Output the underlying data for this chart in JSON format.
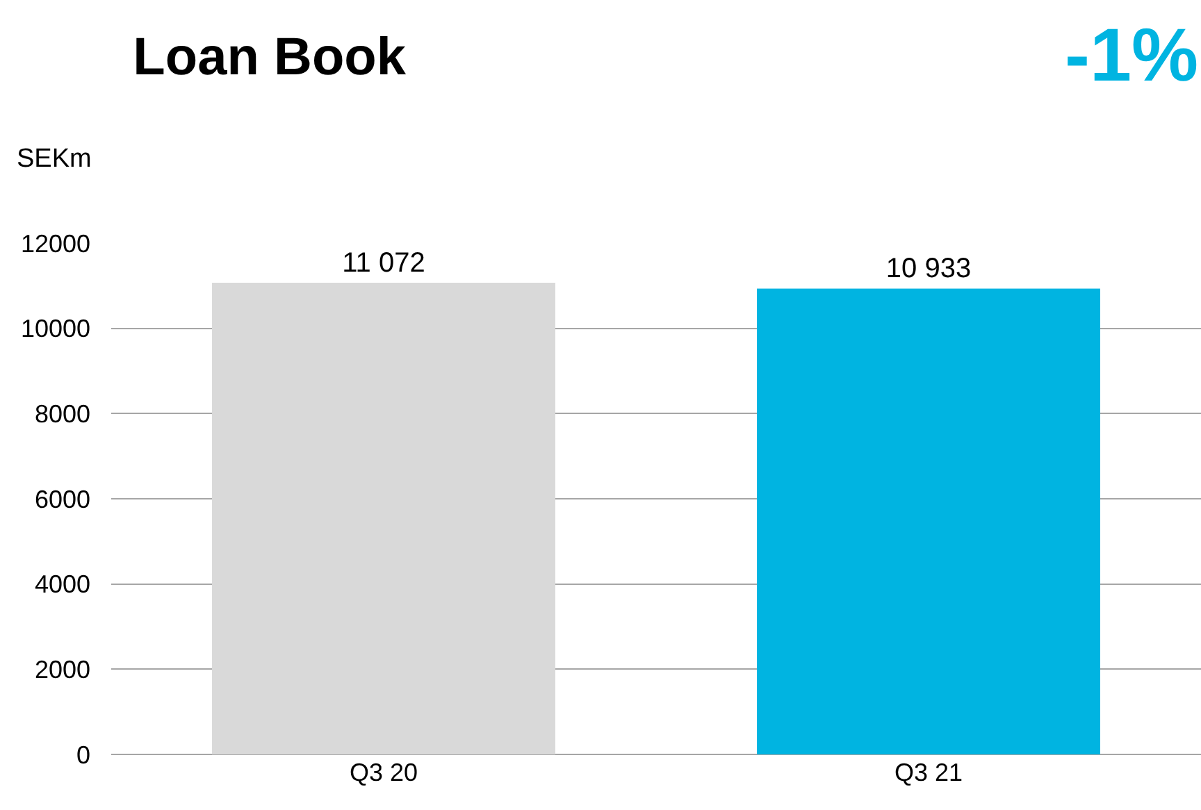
{
  "chart_data": {
    "type": "bar",
    "title": "Loan Book",
    "ylabel": "SEKm",
    "annotations": [
      "-1%"
    ],
    "categories": [
      "Q3 20",
      "Q3 21"
    ],
    "values": [
      11072,
      10933
    ],
    "colors": [
      "#d9d9d9",
      "#00b4e1"
    ],
    "value_labels": [
      "11 072",
      "10 933"
    ],
    "ylim": [
      0,
      12000
    ],
    "yticks": [
      0,
      2000,
      4000,
      6000,
      8000,
      10000,
      12000
    ],
    "grid": "y"
  }
}
